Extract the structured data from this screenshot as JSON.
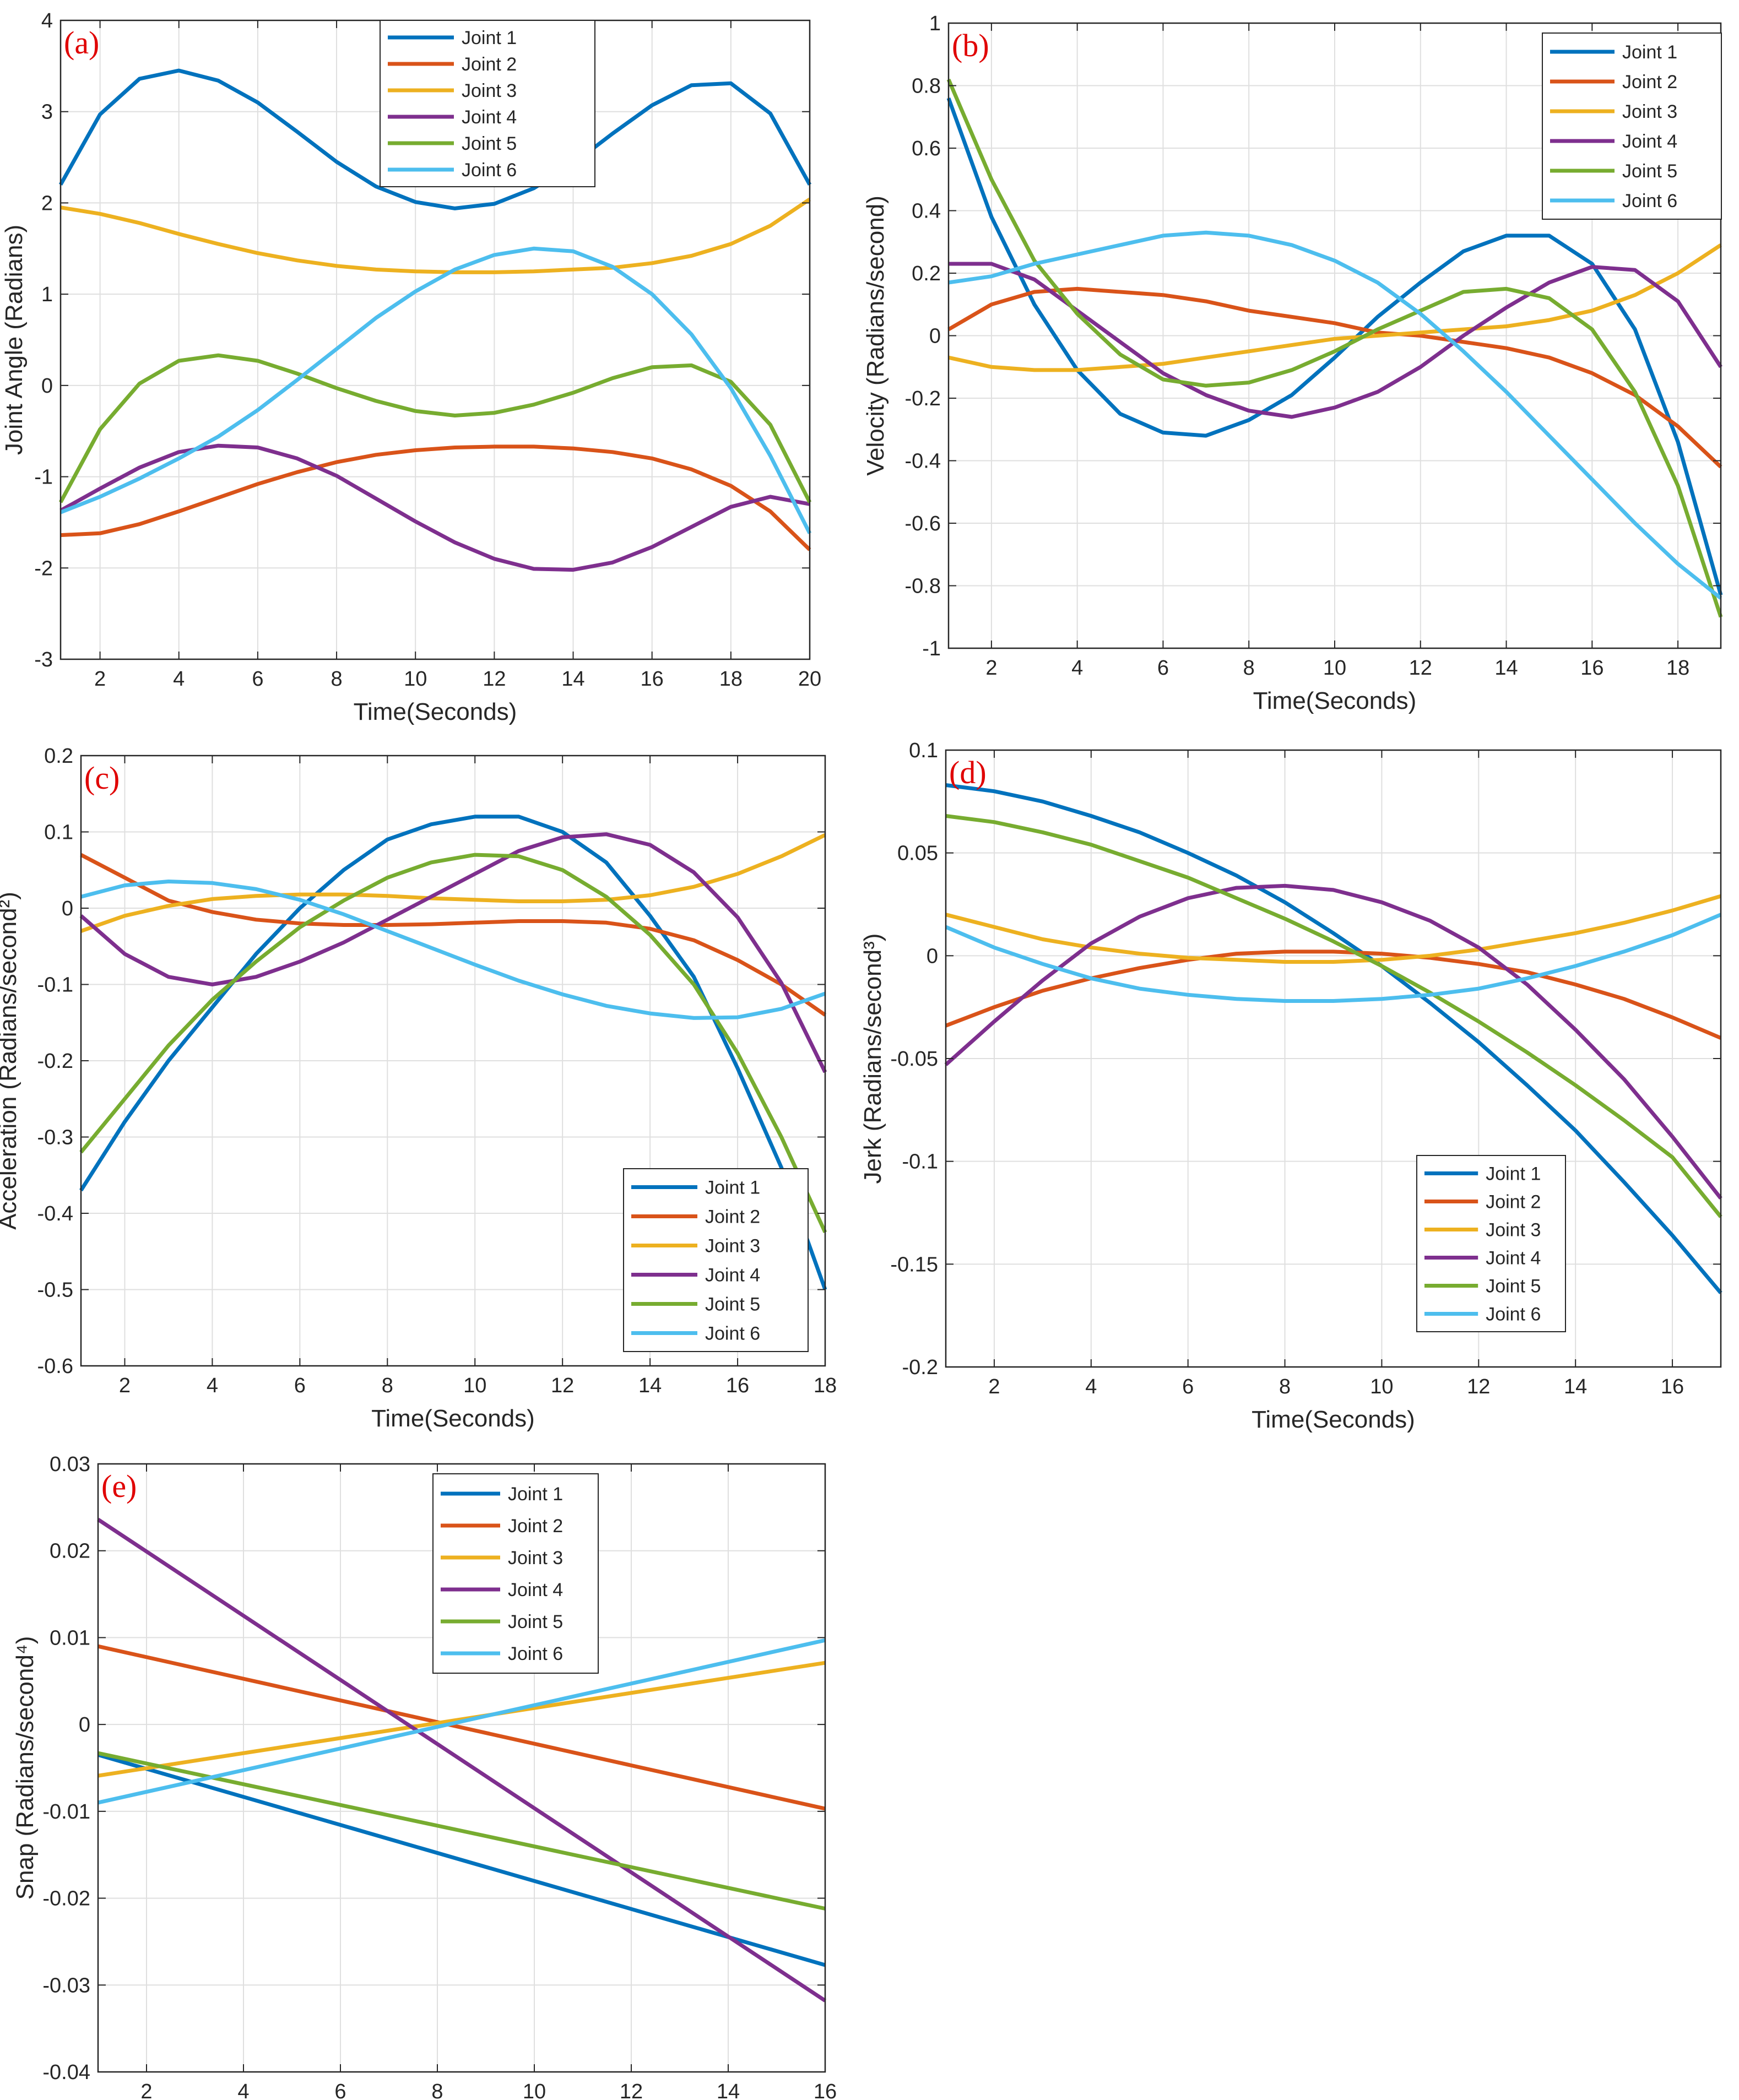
{
  "figure": {
    "series_names": [
      "Joint 1",
      "Joint 2",
      "Joint 3",
      "Joint 4",
      "Joint 5",
      "Joint 6"
    ],
    "colors": [
      "#0072BD",
      "#D95319",
      "#EDB120",
      "#7E2F8E",
      "#77AC30",
      "#4DBEEE"
    ],
    "tag_color": "#e00000"
  },
  "chart_data": [
    {
      "id": "a",
      "type": "line",
      "tag": "(a)",
      "title": "",
      "xlabel": "Time(Seconds)",
      "ylabel": "Joint Angle (Radians)",
      "xlim": [
        1,
        20
      ],
      "ylim": [
        -3,
        4
      ],
      "xticks": [
        2,
        4,
        6,
        8,
        10,
        12,
        14,
        16,
        18,
        20
      ],
      "yticks": [
        -3,
        -2,
        -1,
        0,
        1,
        2,
        3,
        4
      ],
      "ytick_labels": [
        "-3",
        "-2",
        "-1",
        "0",
        "1",
        "2",
        "3",
        "4"
      ],
      "grid": true,
      "legend": "top-center",
      "x": [
        1,
        2,
        3,
        4,
        5,
        6,
        7,
        8,
        9,
        10,
        11,
        12,
        13,
        14,
        15,
        16,
        17,
        18,
        19,
        20
      ],
      "series": [
        {
          "name": "Joint 1",
          "values": [
            2.2,
            2.97,
            3.36,
            3.45,
            3.34,
            3.1,
            2.78,
            2.45,
            2.18,
            2.01,
            1.94,
            1.99,
            2.16,
            2.43,
            2.76,
            3.07,
            3.29,
            3.31,
            2.98,
            2.2
          ]
        },
        {
          "name": "Joint 2",
          "values": [
            -1.64,
            -1.62,
            -1.52,
            -1.38,
            -1.23,
            -1.08,
            -0.95,
            -0.84,
            -0.76,
            -0.71,
            -0.68,
            -0.67,
            -0.67,
            -0.69,
            -0.73,
            -0.8,
            -0.92,
            -1.1,
            -1.38,
            -1.8
          ]
        },
        {
          "name": "Joint 3",
          "values": [
            1.95,
            1.88,
            1.78,
            1.66,
            1.55,
            1.45,
            1.37,
            1.31,
            1.27,
            1.25,
            1.24,
            1.24,
            1.25,
            1.27,
            1.29,
            1.34,
            1.42,
            1.55,
            1.75,
            2.04
          ]
        },
        {
          "name": "Joint 4",
          "values": [
            -1.37,
            -1.13,
            -0.9,
            -0.73,
            -0.66,
            -0.68,
            -0.8,
            -0.99,
            -1.24,
            -1.49,
            -1.72,
            -1.9,
            -2.01,
            -2.02,
            -1.94,
            -1.77,
            -1.55,
            -1.33,
            -1.22,
            -1.3
          ]
        },
        {
          "name": "Joint 5",
          "values": [
            -1.28,
            -0.48,
            0.02,
            0.27,
            0.33,
            0.27,
            0.13,
            -0.03,
            -0.17,
            -0.28,
            -0.33,
            -0.3,
            -0.21,
            -0.08,
            0.08,
            0.2,
            0.22,
            0.04,
            -0.43,
            -1.28
          ]
        },
        {
          "name": "Joint 6",
          "values": [
            -1.39,
            -1.22,
            -1.02,
            -0.8,
            -0.56,
            -0.27,
            0.06,
            0.4,
            0.74,
            1.03,
            1.27,
            1.43,
            1.5,
            1.47,
            1.3,
            1.0,
            0.56,
            -0.03,
            -0.77,
            -1.62
          ]
        }
      ]
    },
    {
      "id": "b",
      "type": "line",
      "tag": "(b)",
      "title": "",
      "xlabel": "Time(Seconds)",
      "ylabel": "Velocity (Radians/second)",
      "xlim": [
        1,
        19
      ],
      "ylim": [
        -1,
        1
      ],
      "xticks": [
        2,
        4,
        6,
        8,
        10,
        12,
        14,
        16,
        18
      ],
      "yticks": [
        -1,
        -0.8,
        -0.6,
        -0.4,
        -0.2,
        0,
        0.2,
        0.4,
        0.6,
        0.8,
        1
      ],
      "ytick_labels": [
        "-1",
        "-0.8",
        "-0.6",
        "-0.4",
        "-0.2",
        "0",
        "0.2",
        "0.4",
        "0.6",
        "0.8",
        "1"
      ],
      "grid": true,
      "legend": "top-right",
      "x": [
        1,
        2,
        3,
        4,
        5,
        6,
        7,
        8,
        9,
        10,
        11,
        12,
        13,
        14,
        15,
        16,
        17,
        18,
        19
      ],
      "series": [
        {
          "name": "Joint 1",
          "values": [
            0.76,
            0.38,
            0.1,
            -0.11,
            -0.25,
            -0.31,
            -0.32,
            -0.27,
            -0.19,
            -0.07,
            0.06,
            0.17,
            0.27,
            0.32,
            0.32,
            0.23,
            0.02,
            -0.34,
            -0.83
          ]
        },
        {
          "name": "Joint 2",
          "values": [
            0.02,
            0.1,
            0.14,
            0.15,
            0.14,
            0.13,
            0.11,
            0.08,
            0.06,
            0.04,
            0.01,
            0.0,
            -0.02,
            -0.04,
            -0.07,
            -0.12,
            -0.19,
            -0.29,
            -0.42
          ]
        },
        {
          "name": "Joint 3",
          "values": [
            -0.07,
            -0.1,
            -0.11,
            -0.11,
            -0.1,
            -0.09,
            -0.07,
            -0.05,
            -0.03,
            -0.01,
            0.0,
            0.01,
            0.02,
            0.03,
            0.05,
            0.08,
            0.13,
            0.2,
            0.29
          ]
        },
        {
          "name": "Joint 4",
          "values": [
            0.23,
            0.23,
            0.18,
            0.08,
            -0.02,
            -0.12,
            -0.19,
            -0.24,
            -0.26,
            -0.23,
            -0.18,
            -0.1,
            0.0,
            0.09,
            0.17,
            0.22,
            0.21,
            0.11,
            -0.1
          ]
        },
        {
          "name": "Joint 5",
          "values": [
            0.82,
            0.5,
            0.24,
            0.07,
            -0.06,
            -0.14,
            -0.16,
            -0.15,
            -0.11,
            -0.05,
            0.02,
            0.08,
            0.14,
            0.15,
            0.12,
            0.02,
            -0.18,
            -0.48,
            -0.9
          ]
        },
        {
          "name": "Joint 6",
          "values": [
            0.17,
            0.19,
            0.23,
            0.26,
            0.29,
            0.32,
            0.33,
            0.32,
            0.29,
            0.24,
            0.17,
            0.07,
            -0.05,
            -0.18,
            -0.32,
            -0.46,
            -0.6,
            -0.73,
            -0.84
          ]
        }
      ]
    },
    {
      "id": "c",
      "type": "line",
      "tag": "(c)",
      "title": "",
      "xlabel": "Time(Seconds)",
      "ylabel": "Acceleration (Radians/second²)",
      "xlim": [
        1,
        18
      ],
      "ylim": [
        -0.6,
        0.2
      ],
      "xticks": [
        2,
        4,
        6,
        8,
        10,
        12,
        14,
        16,
        18
      ],
      "yticks": [
        -0.6,
        -0.5,
        -0.4,
        -0.3,
        -0.2,
        -0.1,
        0,
        0.1,
        0.2
      ],
      "ytick_labels": [
        "-0.6",
        "-0.5",
        "-0.4",
        "-0.3",
        "-0.2",
        "-0.1",
        "0",
        "0.1",
        "0.2"
      ],
      "grid": true,
      "legend": "bottom-right",
      "x": [
        1,
        2,
        3,
        4,
        5,
        6,
        7,
        8,
        9,
        10,
        11,
        12,
        13,
        14,
        15,
        16,
        17,
        18
      ],
      "series": [
        {
          "name": "Joint 1",
          "values": [
            -0.37,
            -0.28,
            -0.2,
            -0.13,
            -0.06,
            0.0,
            0.05,
            0.09,
            0.11,
            0.12,
            0.12,
            0.1,
            0.06,
            -0.01,
            -0.09,
            -0.21,
            -0.34,
            -0.5
          ]
        },
        {
          "name": "Joint 2",
          "values": [
            0.07,
            0.04,
            0.01,
            -0.005,
            -0.015,
            -0.02,
            -0.022,
            -0.022,
            -0.021,
            -0.019,
            -0.017,
            -0.017,
            -0.019,
            -0.027,
            -0.042,
            -0.068,
            -0.1,
            -0.14
          ]
        },
        {
          "name": "Joint 3",
          "values": [
            -0.03,
            -0.01,
            0.003,
            0.012,
            0.016,
            0.018,
            0.018,
            0.016,
            0.013,
            0.011,
            0.009,
            0.009,
            0.011,
            0.017,
            0.028,
            0.045,
            0.068,
            0.096
          ]
        },
        {
          "name": "Joint 4",
          "values": [
            -0.01,
            -0.06,
            -0.09,
            -0.1,
            -0.09,
            -0.07,
            -0.045,
            -0.015,
            0.015,
            0.045,
            0.075,
            0.093,
            0.097,
            0.083,
            0.047,
            -0.012,
            -0.098,
            -0.215
          ]
        },
        {
          "name": "Joint 5",
          "values": [
            -0.32,
            -0.25,
            -0.18,
            -0.12,
            -0.07,
            -0.025,
            0.01,
            0.04,
            0.06,
            0.07,
            0.068,
            0.05,
            0.015,
            -0.035,
            -0.1,
            -0.19,
            -0.3,
            -0.425
          ]
        },
        {
          "name": "Joint 6",
          "values": [
            0.015,
            0.03,
            0.035,
            0.033,
            0.025,
            0.011,
            -0.008,
            -0.03,
            -0.052,
            -0.074,
            -0.095,
            -0.113,
            -0.128,
            -0.138,
            -0.144,
            -0.143,
            -0.132,
            -0.112
          ]
        }
      ]
    },
    {
      "id": "d",
      "type": "line",
      "tag": "(d)",
      "title": "",
      "xlabel": "Time(Seconds)",
      "ylabel": "Jerk (Radians/second³)",
      "xlim": [
        1,
        17
      ],
      "ylim": [
        -0.2,
        0.1
      ],
      "xticks": [
        2,
        4,
        6,
        8,
        10,
        12,
        14,
        16
      ],
      "yticks": [
        -0.2,
        -0.15,
        -0.1,
        -0.05,
        0,
        0.05,
        0.1
      ],
      "ytick_labels": [
        "-0.2",
        "-0.15",
        "-0.1",
        "-0.05",
        "0",
        "0.05",
        "0.1"
      ],
      "grid": true,
      "legend": "center-right",
      "x": [
        1,
        2,
        3,
        4,
        5,
        6,
        7,
        8,
        9,
        10,
        11,
        12,
        13,
        14,
        15,
        16,
        17
      ],
      "series": [
        {
          "name": "Joint 1",
          "values": [
            0.083,
            0.08,
            0.075,
            0.068,
            0.06,
            0.05,
            0.039,
            0.026,
            0.011,
            -0.005,
            -0.023,
            -0.042,
            -0.063,
            -0.085,
            -0.11,
            -0.136,
            -0.164
          ]
        },
        {
          "name": "Joint 2",
          "values": [
            -0.034,
            -0.025,
            -0.017,
            -0.011,
            -0.006,
            -0.002,
            0.001,
            0.002,
            0.002,
            0.001,
            -0.001,
            -0.004,
            -0.008,
            -0.014,
            -0.021,
            -0.03,
            -0.04
          ]
        },
        {
          "name": "Joint 3",
          "values": [
            0.02,
            0.014,
            0.008,
            0.004,
            0.001,
            -0.001,
            -0.002,
            -0.003,
            -0.003,
            -0.002,
            0.0,
            0.003,
            0.007,
            0.011,
            0.016,
            0.022,
            0.029
          ]
        },
        {
          "name": "Joint 4",
          "values": [
            -0.053,
            -0.032,
            -0.012,
            0.006,
            0.019,
            0.028,
            0.033,
            0.034,
            0.032,
            0.026,
            0.017,
            0.004,
            -0.014,
            -0.036,
            -0.06,
            -0.088,
            -0.118
          ]
        },
        {
          "name": "Joint 5",
          "values": [
            0.068,
            0.065,
            0.06,
            0.054,
            0.046,
            0.038,
            0.028,
            0.018,
            0.007,
            -0.005,
            -0.018,
            -0.032,
            -0.047,
            -0.063,
            -0.08,
            -0.098,
            -0.127
          ]
        },
        {
          "name": "Joint 6",
          "values": [
            0.014,
            0.004,
            -0.004,
            -0.011,
            -0.016,
            -0.019,
            -0.021,
            -0.022,
            -0.022,
            -0.021,
            -0.019,
            -0.016,
            -0.011,
            -0.005,
            0.002,
            0.01,
            0.02
          ]
        }
      ]
    },
    {
      "id": "e",
      "type": "line",
      "tag": "(e)",
      "title": "",
      "xlabel": "Time(Seconds)",
      "ylabel": "Snap (Radians/second⁴)",
      "xlim": [
        1,
        16
      ],
      "ylim": [
        -0.04,
        0.03
      ],
      "xticks": [
        2,
        4,
        6,
        8,
        10,
        12,
        14,
        16
      ],
      "yticks": [
        -0.04,
        -0.03,
        -0.02,
        -0.01,
        0,
        0.01,
        0.02,
        0.03
      ],
      "ytick_labels": [
        "-0.04",
        "-0.03",
        "-0.02",
        "-0.01",
        "0",
        "0.01",
        "0.02",
        "0.03"
      ],
      "grid": true,
      "legend": "top-center",
      "x": [
        1,
        16
      ],
      "series": [
        {
          "name": "Joint 1",
          "values": [
            -0.0035,
            -0.0277
          ]
        },
        {
          "name": "Joint 2",
          "values": [
            0.009,
            -0.0097
          ]
        },
        {
          "name": "Joint 3",
          "values": [
            -0.0059,
            0.0071
          ]
        },
        {
          "name": "Joint 4",
          "values": [
            0.0236,
            -0.0318
          ]
        },
        {
          "name": "Joint 5",
          "values": [
            -0.0033,
            -0.0212
          ]
        },
        {
          "name": "Joint 6",
          "values": [
            -0.009,
            0.0097
          ]
        }
      ]
    }
  ]
}
